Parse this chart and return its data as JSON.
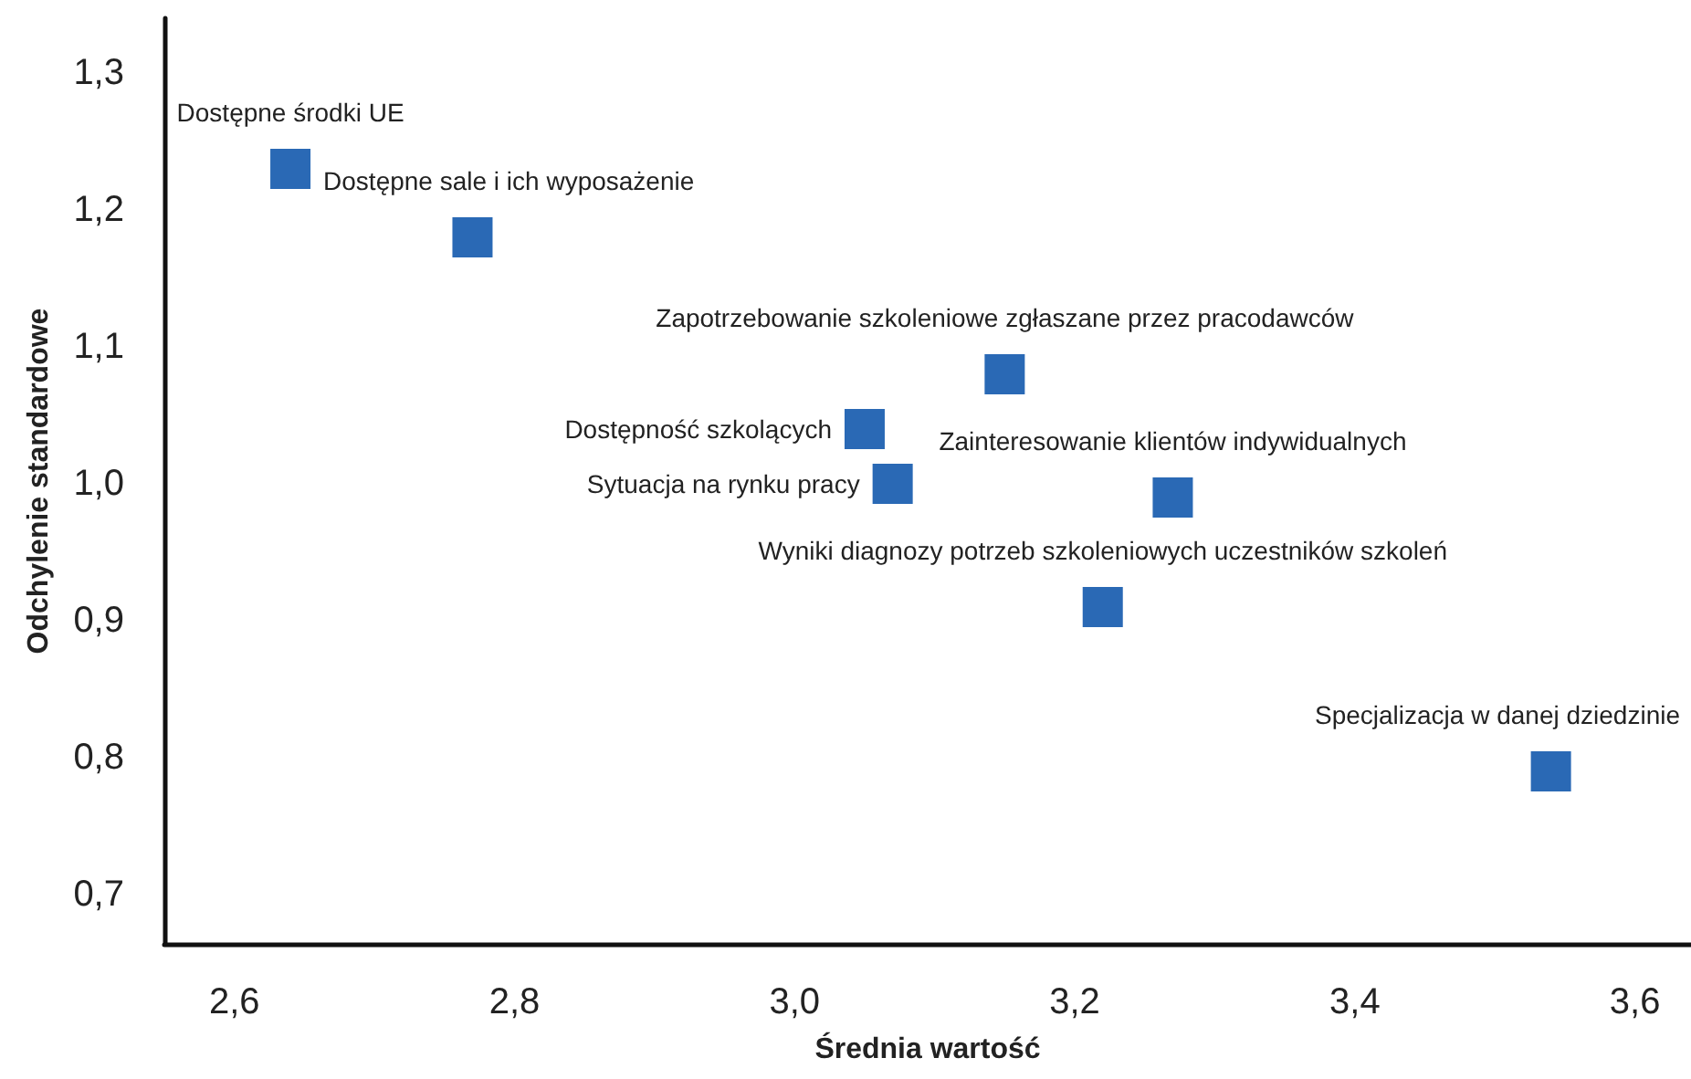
{
  "chart_data": {
    "type": "scatter",
    "xlabel": "Średnia wartość",
    "ylabel": "Odchylenie standardowe",
    "x": [
      2.64,
      2.77,
      3.15,
      3.05,
      3.07,
      3.27,
      3.22,
      3.54
    ],
    "series": [
      {
        "color": "#2a69b5",
        "values": [
          1.23,
          1.18,
          1.08,
          1.04,
          1.0,
          0.99,
          0.91,
          0.79
        ]
      }
    ],
    "marker": "square",
    "grid": false,
    "xlim": [
      2.55,
      3.64
    ],
    "ylim": [
      0.664,
      1.34
    ],
    "xticks": [
      {
        "value": 2.6,
        "label": "2,6"
      },
      {
        "value": 2.8,
        "label": "2,8"
      },
      {
        "value": 3.0,
        "label": "3,0"
      },
      {
        "value": 3.2,
        "label": "3,2"
      },
      {
        "value": 3.4,
        "label": "3,4"
      },
      {
        "value": 3.6,
        "label": "3,6"
      }
    ],
    "yticks": [
      {
        "value": 0.7,
        "label": "0,7"
      },
      {
        "value": 0.8,
        "label": "0,8"
      },
      {
        "value": 0.9,
        "label": "0,9"
      },
      {
        "value": 1.0,
        "label": "1,0"
      },
      {
        "value": 1.1,
        "label": "1,1"
      },
      {
        "value": 1.2,
        "label": "1,2"
      },
      {
        "value": 1.3,
        "label": "1,3"
      }
    ],
    "annotations": [
      {
        "text": "Dostępne środki UE",
        "x": 2.64,
        "y": 1.23
      },
      {
        "text": "Dostępne sale i ich wyposażenie",
        "x": 2.77,
        "y": 1.18
      },
      {
        "text": "Zapotrzebowanie szkoleniowe zgłaszane przez pracodawców",
        "x": 3.15,
        "y": 1.08
      },
      {
        "text": "Dostępność szkolących",
        "x": 3.05,
        "y": 1.04
      },
      {
        "text": "Sytuacja na rynku pracy",
        "x": 3.07,
        "y": 1.0
      },
      {
        "text": "Zainteresowanie klientów indywidualnych",
        "x": 3.27,
        "y": 0.99
      },
      {
        "text": "Wyniki diagnozy potrzeb szkoleniowych uczestników szkoleń",
        "x": 3.22,
        "y": 0.91
      },
      {
        "text": "Specjalizacja w danej dziedzinie",
        "x": 3.54,
        "y": 0.79
      }
    ]
  }
}
